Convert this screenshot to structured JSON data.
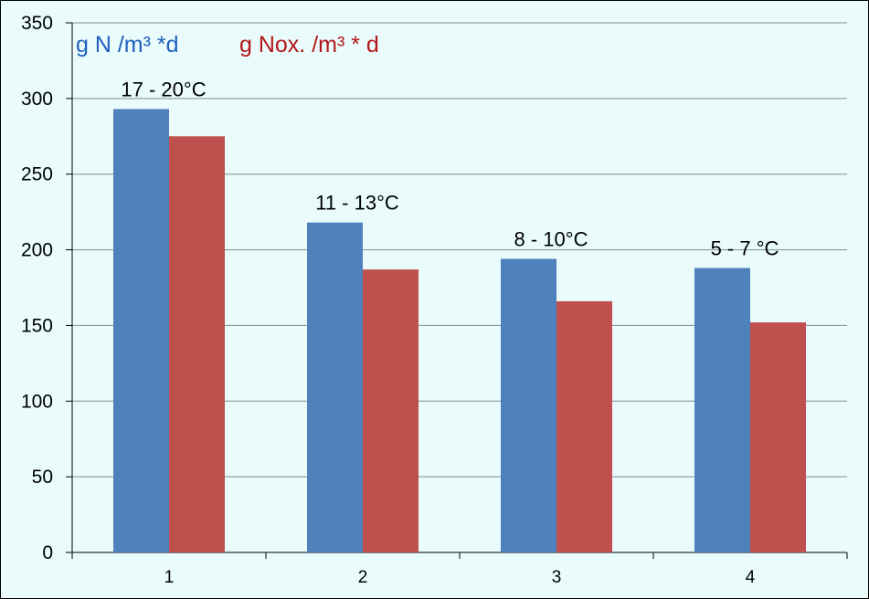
{
  "chart_data": {
    "type": "bar",
    "categories": [
      "1",
      "2",
      "3",
      "4"
    ],
    "series": [
      {
        "name": "g N /m³ *d",
        "values": [
          293,
          218,
          194,
          188
        ],
        "color": "#4f81bd"
      },
      {
        "name": "g Nox. /m³ * d",
        "values": [
          275,
          187,
          166,
          152
        ],
        "color": "#c0504d"
      }
    ],
    "annotations": [
      "17 - 20°C",
      "11 - 13°C",
      "8 - 10°C",
      "5 - 7 °C"
    ],
    "ylim": [
      0,
      350
    ],
    "yticks": [
      0,
      50,
      100,
      150,
      200,
      250,
      300,
      350
    ],
    "title": "",
    "xlabel": "",
    "ylabel": "",
    "grid": true,
    "legend_position": "top-left",
    "colors": {
      "background": "#e9fbfb",
      "gridline": "#7f8f8f"
    }
  }
}
